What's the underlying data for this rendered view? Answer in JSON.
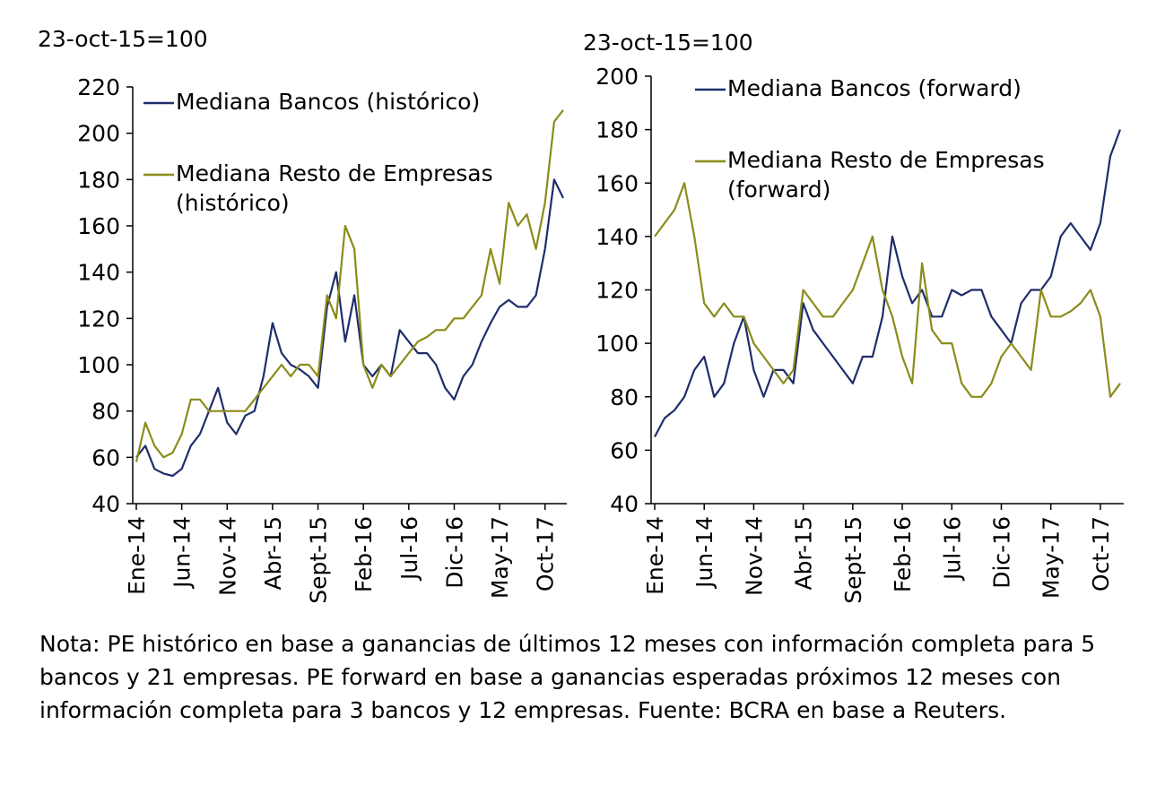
{
  "chart_data": [
    {
      "type": "line",
      "y_label": "23-oct-15=100",
      "categories": [
        "Ene-14",
        null,
        null,
        null,
        null,
        "Jun-14",
        null,
        null,
        null,
        null,
        "Nov-14",
        null,
        null,
        null,
        null,
        "Abr-15",
        null,
        null,
        null,
        null,
        "Sept-15",
        null,
        null,
        null,
        null,
        "Feb-16",
        null,
        null,
        null,
        null,
        "Jul-16",
        null,
        null,
        null,
        null,
        "Dic-16",
        null,
        null,
        null,
        null,
        "May-17",
        null,
        null,
        null,
        null,
        "Oct-17",
        null,
        null
      ],
      "ylim": [
        40,
        220
      ],
      "yticks": [
        40,
        60,
        80,
        100,
        120,
        140,
        160,
        180,
        200,
        220
      ],
      "grid": false,
      "series": [
        {
          "name": "Mediana Bancos (histórico)",
          "color": "#1f2d6b",
          "values": [
            60,
            65,
            55,
            53,
            52,
            55,
            65,
            70,
            80,
            90,
            75,
            70,
            78,
            80,
            95,
            118,
            105,
            100,
            98,
            95,
            90,
            125,
            140,
            110,
            130,
            100,
            95,
            100,
            95,
            115,
            110,
            105,
            105,
            100,
            90,
            85,
            95,
            100,
            110,
            118,
            125,
            128,
            125,
            125,
            130,
            150,
            180,
            172
          ]
        },
        {
          "name": "Mediana Resto de Empresas (histórico)",
          "color": "#8b8c1a",
          "values": [
            58,
            75,
            65,
            60,
            62,
            70,
            85,
            85,
            80,
            80,
            80,
            80,
            80,
            85,
            90,
            95,
            100,
            95,
            100,
            100,
            95,
            130,
            120,
            160,
            150,
            100,
            90,
            100,
            95,
            100,
            105,
            110,
            112,
            115,
            115,
            120,
            120,
            125,
            130,
            150,
            135,
            170,
            160,
            165,
            150,
            170,
            205,
            210
          ]
        }
      ]
    },
    {
      "type": "line",
      "y_label": "23-oct-15=100",
      "categories": [
        "Ene-14",
        null,
        null,
        null,
        null,
        "Jun-14",
        null,
        null,
        null,
        null,
        "Nov-14",
        null,
        null,
        null,
        null,
        "Abr-15",
        null,
        null,
        null,
        null,
        "Sept-15",
        null,
        null,
        null,
        null,
        "Feb-16",
        null,
        null,
        null,
        null,
        "Jul-16",
        null,
        null,
        null,
        null,
        "Dic-16",
        null,
        null,
        null,
        null,
        "May-17",
        null,
        null,
        null,
        null,
        "Oct-17",
        null,
        null
      ],
      "ylim": [
        40,
        200
      ],
      "yticks": [
        40,
        60,
        80,
        100,
        120,
        140,
        160,
        180,
        200
      ],
      "grid": false,
      "series": [
        {
          "name": "Mediana Bancos (forward)",
          "color": "#1f2d6b",
          "values": [
            65,
            72,
            75,
            80,
            90,
            95,
            80,
            85,
            100,
            110,
            90,
            80,
            90,
            90,
            85,
            115,
            105,
            100,
            95,
            90,
            85,
            95,
            95,
            110,
            140,
            125,
            115,
            120,
            110,
            110,
            120,
            118,
            120,
            120,
            110,
            105,
            100,
            115,
            120,
            120,
            125,
            140,
            145,
            140,
            135,
            145,
            170,
            180
          ]
        },
        {
          "name": "Mediana Resto de Empresas (forward)",
          "color": "#8b8c1a",
          "values": [
            140,
            145,
            150,
            160,
            140,
            115,
            110,
            115,
            110,
            110,
            100,
            95,
            90,
            85,
            90,
            120,
            115,
            110,
            110,
            115,
            120,
            130,
            140,
            120,
            110,
            95,
            85,
            130,
            105,
            100,
            100,
            85,
            80,
            80,
            85,
            95,
            100,
            95,
            90,
            120,
            110,
            110,
            112,
            115,
            120,
            110,
            80,
            85
          ]
        }
      ]
    }
  ],
  "note": "Nota: PE histórico en base a ganancias de últimos 12 meses con información completa para 5 bancos y 21 empresas. PE forward en base a ganancias esperadas próximos 12 meses con información completa para 3 bancos y 12 empresas. Fuente: BCRA en base a Reuters."
}
